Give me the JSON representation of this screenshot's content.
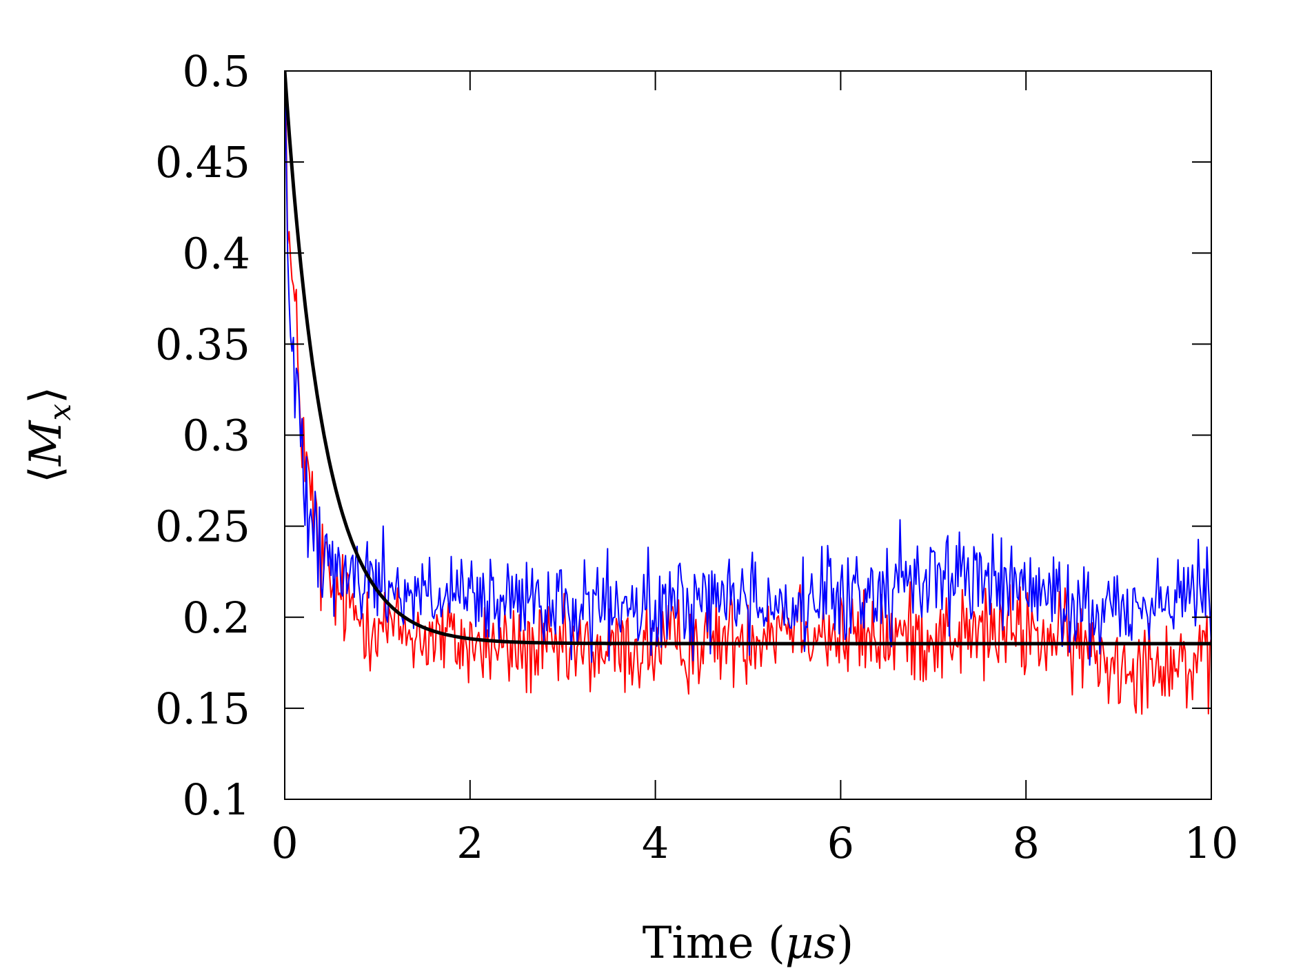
{
  "chart_data": {
    "type": "line",
    "title": "",
    "xlabel": "Time (μs)",
    "xlabel_parts": {
      "prefix": "Time (",
      "symbol": "μs",
      "suffix": ")"
    },
    "ylabel": "⟨M_x⟩",
    "ylabel_parts": {
      "open": "⟨",
      "main": "M",
      "sub": "x",
      "close": "⟩"
    },
    "xlim": [
      0,
      10
    ],
    "ylim": [
      0.1,
      0.5
    ],
    "x_ticks": [
      0,
      2,
      4,
      6,
      8,
      10
    ],
    "x_tick_labels": [
      "0",
      "2",
      "4",
      "6",
      "8",
      "10"
    ],
    "y_ticks": [
      0.1,
      0.15,
      0.2,
      0.25,
      0.3,
      0.35,
      0.4,
      0.45,
      0.5
    ],
    "y_tick_labels": [
      "0.1",
      "0.15",
      "0.2",
      "0.25",
      "0.3",
      "0.35",
      "0.4",
      "0.45",
      "0.5"
    ],
    "grid": false,
    "legend": "none",
    "series": [
      {
        "color": "#ff0000",
        "style": "thin-noisy",
        "points": [
          [
            0,
            0.5
          ],
          [
            0.05,
            0.4
          ],
          [
            0.1,
            0.37
          ],
          [
            0.15,
            0.33
          ],
          [
            0.2,
            0.3
          ],
          [
            0.25,
            0.27
          ],
          [
            0.3,
            0.26
          ],
          [
            0.35,
            0.24
          ],
          [
            0.4,
            0.23
          ],
          [
            0.45,
            0.22
          ],
          [
            0.5,
            0.215
          ],
          [
            0.6,
            0.21
          ],
          [
            0.7,
            0.205
          ],
          [
            0.8,
            0.2
          ],
          [
            0.9,
            0.2
          ],
          [
            1.0,
            0.198
          ],
          [
            1.2,
            0.193
          ],
          [
            1.5,
            0.19
          ],
          [
            2.0,
            0.185
          ],
          [
            3.0,
            0.18
          ],
          [
            4.0,
            0.183
          ],
          [
            5.0,
            0.19
          ],
          [
            5.5,
            0.2
          ],
          [
            6.0,
            0.188
          ],
          [
            7.0,
            0.19
          ],
          [
            8.0,
            0.192
          ],
          [
            8.5,
            0.185
          ],
          [
            9.0,
            0.175
          ],
          [
            9.5,
            0.178
          ],
          [
            10.0,
            0.17
          ]
        ]
      },
      {
        "color": "#0000ff",
        "style": "thin-noisy",
        "points": [
          [
            0,
            0.5
          ],
          [
            0.05,
            0.36
          ],
          [
            0.1,
            0.33
          ],
          [
            0.2,
            0.29
          ],
          [
            0.3,
            0.26
          ],
          [
            0.4,
            0.245
          ],
          [
            0.5,
            0.235
          ],
          [
            0.6,
            0.225
          ],
          [
            0.8,
            0.22
          ],
          [
            1.0,
            0.22
          ],
          [
            1.5,
            0.212
          ],
          [
            2.0,
            0.208
          ],
          [
            3.0,
            0.205
          ],
          [
            4.0,
            0.203
          ],
          [
            4.5,
            0.21
          ],
          [
            5.0,
            0.212
          ],
          [
            5.5,
            0.205
          ],
          [
            6.0,
            0.21
          ],
          [
            6.5,
            0.215
          ],
          [
            7.0,
            0.225
          ],
          [
            7.5,
            0.222
          ],
          [
            8.0,
            0.215
          ],
          [
            8.5,
            0.205
          ],
          [
            9.0,
            0.205
          ],
          [
            9.5,
            0.21
          ],
          [
            10.0,
            0.215
          ]
        ]
      },
      {
        "color": "#000000",
        "style": "thick-smooth",
        "model": {
          "form": "exponential",
          "y_inf": 0.1855,
          "y0": 0.5,
          "tau": 0.42
        }
      }
    ]
  }
}
